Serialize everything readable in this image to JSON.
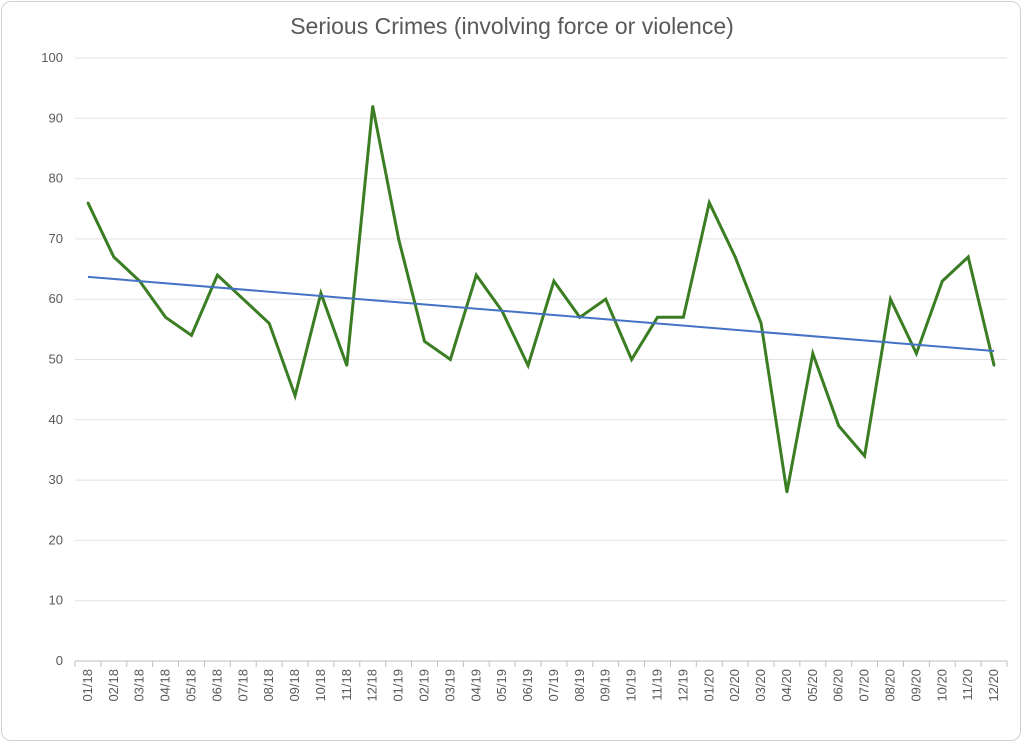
{
  "chart_data": {
    "type": "line",
    "title": "Serious Crimes (involving force or violence)",
    "xlabel": "",
    "ylabel": "",
    "ylim": [
      0,
      100
    ],
    "yticks": [
      0,
      10,
      20,
      30,
      40,
      50,
      60,
      70,
      80,
      90,
      100
    ],
    "grid": true,
    "legend": "none",
    "categories": [
      "01/18",
      "02/18",
      "03/18",
      "04/18",
      "05/18",
      "06/18",
      "07/18",
      "08/18",
      "09/18",
      "10/18",
      "11/18",
      "12/18",
      "01/19",
      "02/19",
      "03/19",
      "04/19",
      "05/19",
      "06/19",
      "07/19",
      "08/19",
      "09/19",
      "10/19",
      "11/19",
      "12/19",
      "01/20",
      "02/20",
      "03/20",
      "04/20",
      "05/20",
      "06/20",
      "07/20",
      "08/20",
      "09/20",
      "10/20",
      "11/20",
      "12/20"
    ],
    "series": [
      {
        "values": [
          76,
          67,
          63,
          57,
          54,
          64,
          60,
          56,
          44,
          61,
          49,
          92,
          70,
          53,
          50,
          64,
          58,
          49,
          63,
          57,
          60,
          50,
          57,
          57,
          76,
          67,
          56,
          28,
          51,
          39,
          34,
          60,
          51,
          63,
          67,
          49
        ],
        "color": "#3a7d22"
      }
    ],
    "trendline": {
      "type": "linear",
      "start": 63.7,
      "end": 51.4,
      "color": "#4472c4"
    }
  }
}
